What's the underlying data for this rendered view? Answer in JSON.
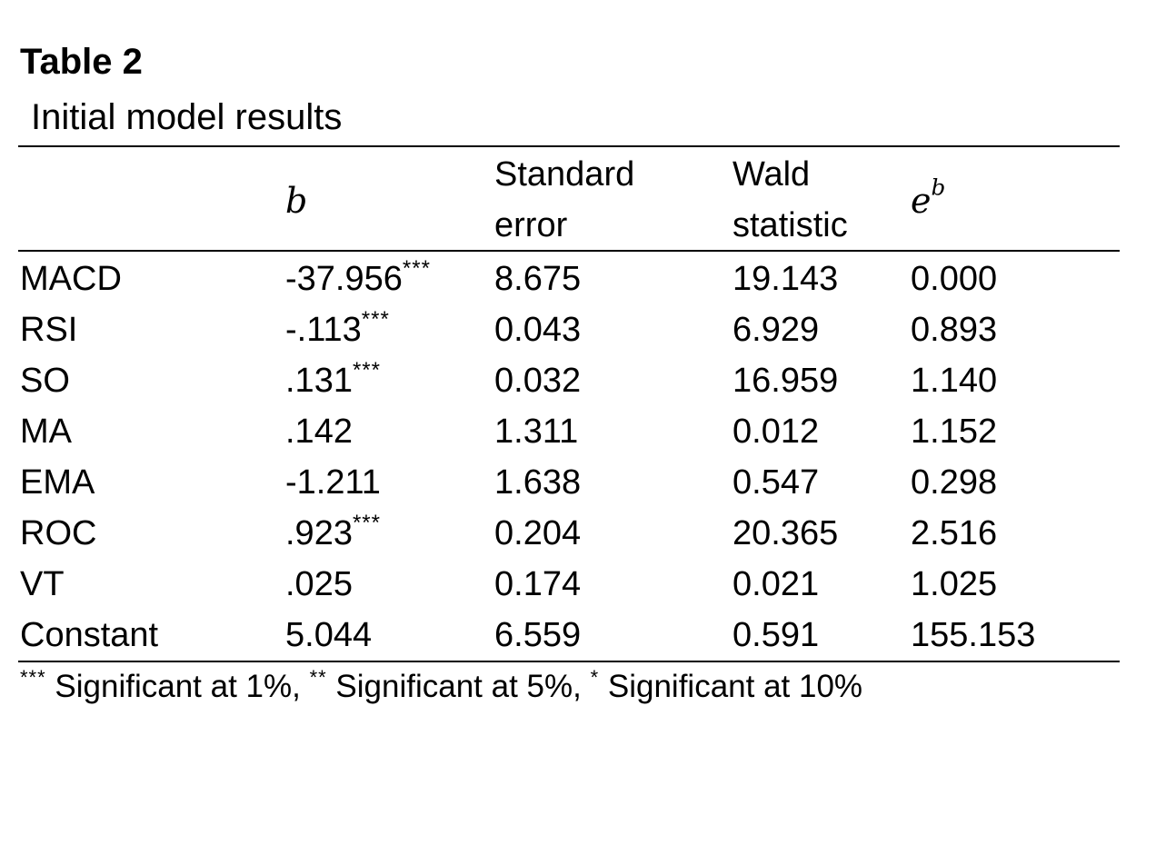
{
  "table": {
    "number": "Table 2",
    "caption": "Initial model results",
    "columns": [
      {
        "lines": [
          "",
          ""
        ]
      },
      {
        "math_base": "b",
        "math_sup": ""
      },
      {
        "lines": [
          "Standard",
          "error"
        ]
      },
      {
        "lines": [
          "Wald",
          "statistic"
        ]
      },
      {
        "math_base": "e",
        "math_sup": "b"
      }
    ],
    "rows": [
      {
        "variable": "MACD",
        "b": "-37.956",
        "b_sig": "***",
        "standard_error": "8.675",
        "wald": "19.143",
        "exp_b": "0.000"
      },
      {
        "variable": "RSI",
        "b": "-.113",
        "b_sig": "***",
        "standard_error": "0.043",
        "wald": "6.929",
        "exp_b": "0.893"
      },
      {
        "variable": "SO",
        "b": ".131",
        "b_sig": "***",
        "standard_error": "0.032",
        "wald": "16.959",
        "exp_b": "1.140"
      },
      {
        "variable": "MA",
        "b": ".142",
        "b_sig": "",
        "standard_error": "1.311",
        "wald": "0.012",
        "exp_b": "1.152"
      },
      {
        "variable": "EMA",
        "b": "-1.211",
        "b_sig": "",
        "standard_error": "1.638",
        "wald": "0.547",
        "exp_b": "0.298"
      },
      {
        "variable": "ROC",
        "b": ".923",
        "b_sig": "***",
        "standard_error": "0.204",
        "wald": "20.365",
        "exp_b": "2.516"
      },
      {
        "variable": "VT",
        "b": ".025",
        "b_sig": "",
        "standard_error": "0.174",
        "wald": "0.021",
        "exp_b": "1.025"
      },
      {
        "variable": "Constant",
        "b": "5.044",
        "b_sig": "",
        "standard_error": "6.559",
        "wald": "0.591",
        "exp_b": "155.153"
      }
    ],
    "footnote": {
      "sig1_marker": "***",
      "sig1_text": " Significant at 1%, ",
      "sig5_marker": "**",
      "sig5_text": " Significant at 5%, ",
      "sig10_marker": "*",
      "sig10_text": " Significant at 10%"
    }
  }
}
